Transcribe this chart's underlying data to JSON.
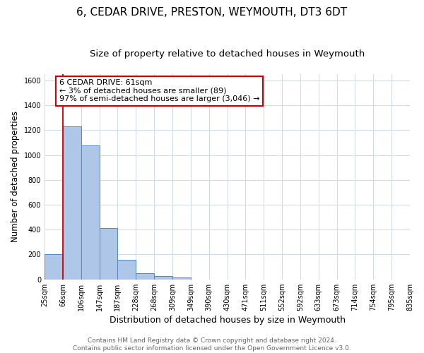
{
  "title": "6, CEDAR DRIVE, PRESTON, WEYMOUTH, DT3 6DT",
  "subtitle": "Size of property relative to detached houses in Weymouth",
  "xlabel": "Distribution of detached houses by size in Weymouth",
  "ylabel": "Number of detached properties",
  "bin_labels": [
    "25sqm",
    "66sqm",
    "106sqm",
    "147sqm",
    "187sqm",
    "228sqm",
    "268sqm",
    "309sqm",
    "349sqm",
    "390sqm",
    "430sqm",
    "471sqm",
    "511sqm",
    "552sqm",
    "592sqm",
    "633sqm",
    "673sqm",
    "714sqm",
    "754sqm",
    "795sqm",
    "835sqm"
  ],
  "bar_values": [
    205,
    1228,
    1075,
    410,
    160,
    50,
    25,
    15,
    0,
    0,
    0,
    0,
    0,
    0,
    0,
    0,
    0,
    0,
    0,
    0
  ],
  "bar_color": "#aec6e8",
  "bar_edge_color": "#5588bb",
  "bar_edge_width": 0.7,
  "marker_color": "#cc0000",
  "ylim": [
    0,
    1650
  ],
  "yticks": [
    0,
    200,
    400,
    600,
    800,
    1000,
    1200,
    1400,
    1600
  ],
  "annotation_title": "6 CEDAR DRIVE: 61sqm",
  "annotation_line1": "← 3% of detached houses are smaller (89)",
  "annotation_line2": "97% of semi-detached houses are larger (3,046) →",
  "annotation_box_color": "#ffffff",
  "annotation_box_edge": "#cc0000",
  "footer_line1": "Contains HM Land Registry data © Crown copyright and database right 2024.",
  "footer_line2": "Contains public sector information licensed under the Open Government Licence v3.0.",
  "bg_color": "#ffffff",
  "grid_color": "#ccd9e8",
  "title_fontsize": 11,
  "subtitle_fontsize": 9.5,
  "xlabel_fontsize": 9,
  "ylabel_fontsize": 8.5,
  "tick_fontsize": 7,
  "annotation_fontsize": 8,
  "footer_fontsize": 6.5
}
